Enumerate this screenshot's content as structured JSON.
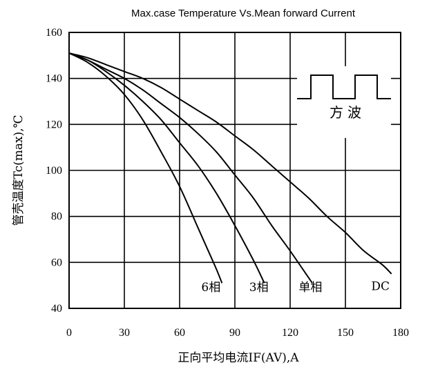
{
  "chart_data": {
    "type": "line",
    "title": "Max.case Temperature Vs.Mean forward Current",
    "xlabel": "正向平均电流IF(AV),A",
    "ylabel": "管壳温度Tc(max),℃",
    "xlim": [
      0,
      180
    ],
    "ylim": [
      40,
      160
    ],
    "xticks": [
      0,
      30,
      60,
      90,
      120,
      150,
      180
    ],
    "yticks": [
      40,
      60,
      80,
      100,
      120,
      140,
      160
    ],
    "grid": true,
    "series": [
      {
        "name": "6相",
        "x": [
          0,
          10,
          20,
          30,
          40,
          50,
          60,
          70,
          75,
          80,
          83
        ],
        "y": [
          151,
          147,
          141,
          133,
          122,
          108,
          93,
          75,
          66,
          57,
          51
        ]
      },
      {
        "name": "3相",
        "x": [
          0,
          10,
          20,
          30,
          40,
          50,
          60,
          70,
          80,
          90,
          100,
          106
        ],
        "y": [
          151,
          148,
          143,
          137,
          130,
          122,
          112,
          102,
          90,
          76,
          61,
          51
        ]
      },
      {
        "name": "单相",
        "x": [
          0,
          10,
          20,
          30,
          40,
          50,
          60,
          70,
          80,
          90,
          100,
          110,
          120,
          132
        ],
        "y": [
          151,
          148,
          144,
          140,
          135,
          129,
          123,
          116,
          108,
          98,
          88,
          76,
          65,
          51
        ]
      },
      {
        "name": "DC",
        "x": [
          0,
          10,
          20,
          30,
          40,
          50,
          60,
          70,
          80,
          90,
          100,
          110,
          120,
          130,
          140,
          150,
          160,
          170,
          175
        ],
        "y": [
          151,
          149,
          146,
          143,
          140,
          136,
          131,
          126,
          121,
          115,
          109,
          102,
          95,
          88,
          80,
          73,
          65,
          59,
          55
        ]
      }
    ],
    "curve_labels": [
      {
        "text": "6相",
        "x": 77,
        "y": 47.5
      },
      {
        "text": "3相",
        "x": 103,
        "y": 47.5
      },
      {
        "text": "单相",
        "x": 131,
        "y": 47.5
      },
      {
        "text": "DC",
        "x": 169,
        "y": 48
      }
    ],
    "inset": {
      "label": "方波"
    }
  }
}
